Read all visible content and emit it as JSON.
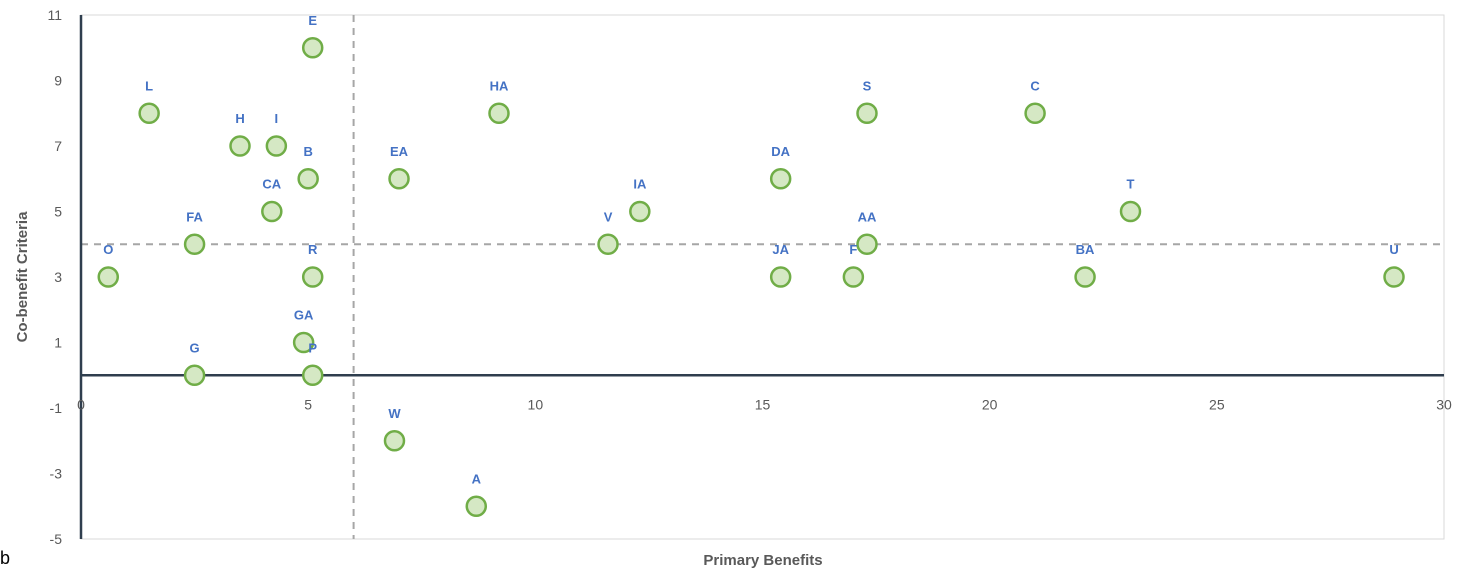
{
  "chart_data": {
    "type": "scatter",
    "title": "",
    "xlabel": "Primary Benefits",
    "ylabel": "Co-benefit Criteria",
    "xlim": [
      0,
      30
    ],
    "ylim": [
      -5,
      11
    ],
    "xticks": [
      0,
      5,
      10,
      15,
      20,
      25,
      30
    ],
    "yticks": [
      -5,
      -3,
      -1,
      1,
      3,
      5,
      7,
      9,
      11
    ],
    "reference_lines": {
      "vertical_dashed_x": 6,
      "horizontal_dashed_y": 4,
      "solid_x_axis_y": 0
    },
    "marker": {
      "fill": "#d5e8c4",
      "stroke": "#70ad47"
    },
    "label_color": "#4472c4",
    "points": [
      {
        "label": "E",
        "x": 5.1,
        "y": 10
      },
      {
        "label": "L",
        "x": 1.5,
        "y": 8
      },
      {
        "label": "HA",
        "x": 9.2,
        "y": 8
      },
      {
        "label": "S",
        "x": 17.3,
        "y": 8
      },
      {
        "label": "C",
        "x": 21.0,
        "y": 8
      },
      {
        "label": "H",
        "x": 3.5,
        "y": 7
      },
      {
        "label": "I",
        "x": 4.3,
        "y": 7
      },
      {
        "label": "B",
        "x": 5.0,
        "y": 6
      },
      {
        "label": "EA",
        "x": 7.0,
        "y": 6
      },
      {
        "label": "DA",
        "x": 15.4,
        "y": 6
      },
      {
        "label": "CA",
        "x": 4.2,
        "y": 5
      },
      {
        "label": "IA",
        "x": 12.3,
        "y": 5
      },
      {
        "label": "T",
        "x": 23.1,
        "y": 5
      },
      {
        "label": "FA",
        "x": 2.5,
        "y": 4
      },
      {
        "label": "V",
        "x": 11.6,
        "y": 4
      },
      {
        "label": "AA",
        "x": 17.3,
        "y": 4
      },
      {
        "label": "O",
        "x": 0.6,
        "y": 3
      },
      {
        "label": "R",
        "x": 5.1,
        "y": 3
      },
      {
        "label": "JA",
        "x": 15.4,
        "y": 3
      },
      {
        "label": "F",
        "x": 17.0,
        "y": 3
      },
      {
        "label": "BA",
        "x": 22.1,
        "y": 3
      },
      {
        "label": "U",
        "x": 28.9,
        "y": 3
      },
      {
        "label": "GA",
        "x": 4.9,
        "y": 1
      },
      {
        "label": "G",
        "x": 2.5,
        "y": 0
      },
      {
        "label": "P",
        "x": 5.1,
        "y": 0
      },
      {
        "label": "W",
        "x": 6.9,
        "y": -2
      },
      {
        "label": "A",
        "x": 8.7,
        "y": -4
      }
    ]
  },
  "corner_mark": "b"
}
